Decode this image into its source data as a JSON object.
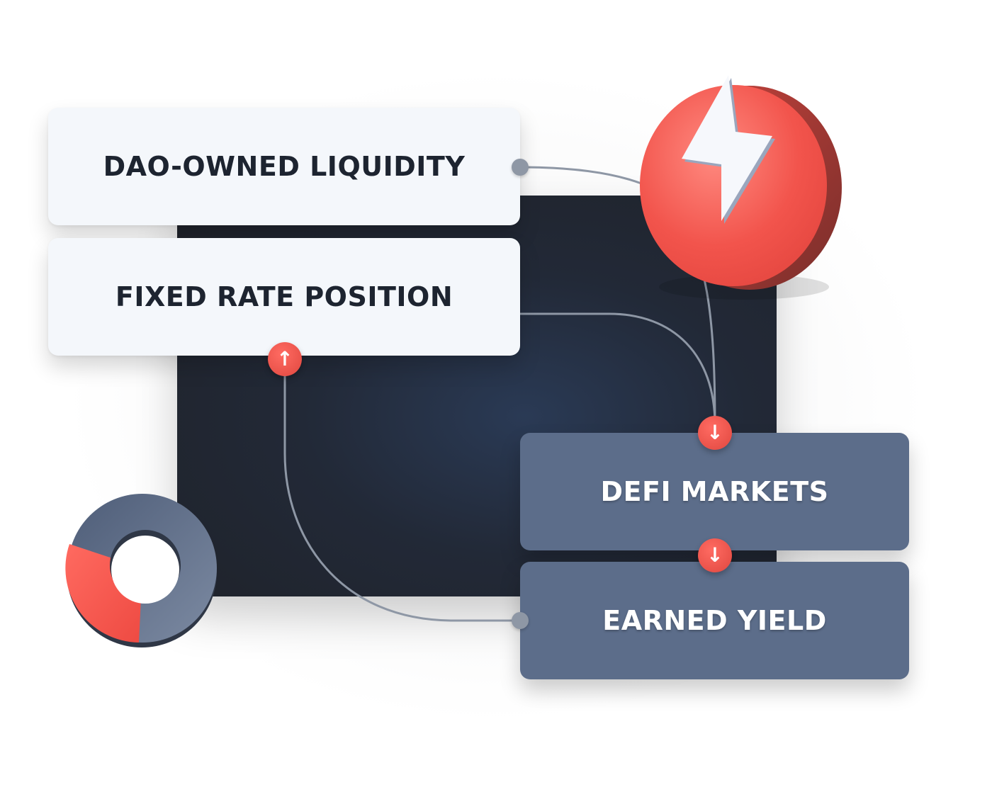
{
  "nodes": {
    "dao_owned_liquidity": "DAO-OWNED LIQUIDITY",
    "fixed_rate_position": "FIXED RATE POSITION",
    "defi_markets": "DEFI MARKETS",
    "earned_yield": "EARNED YIELD"
  },
  "badges": {
    "up_arrow": "↑",
    "down_arrow": "↓"
  },
  "icons": {
    "bolt": "lightning-bolt-icon",
    "donut": "donut-chart-icon"
  },
  "colors": {
    "accent_red": "#f2544c",
    "slate_card": "#5c6d8a",
    "light_card": "#f4f7fb",
    "dark_panel": "#222937",
    "connector": "#8e97a5"
  }
}
